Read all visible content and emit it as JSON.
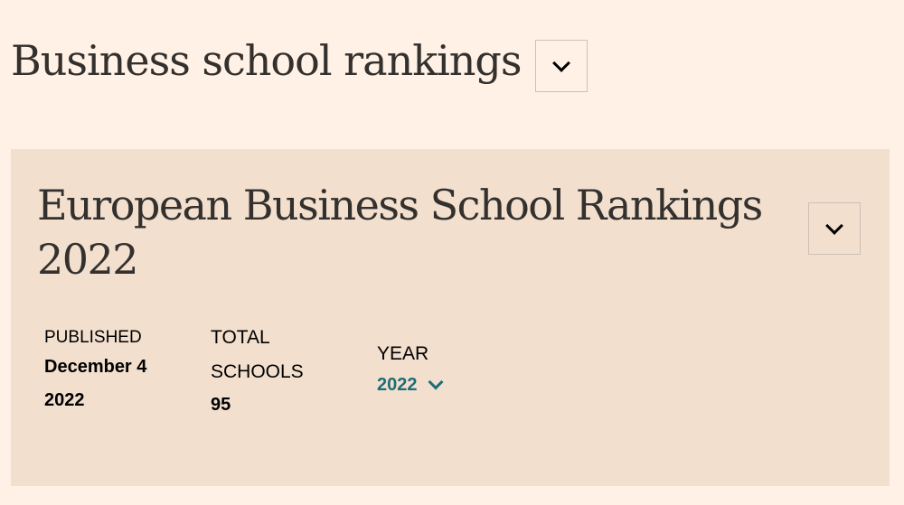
{
  "header": {
    "title": "Business school rankings",
    "dropdown_icon": "chevron-down-icon"
  },
  "ranking": {
    "title": "European Business School Rankings 2022",
    "dropdown_icon": "chevron-down-icon",
    "published": {
      "label": "PUBLISHED",
      "value": "December 4 2022"
    },
    "total_schools": {
      "label": "TOTAL SCHOOLS",
      "value": "95"
    },
    "year": {
      "label": "YEAR",
      "selected": "2022",
      "color": "#1e6e77"
    }
  }
}
